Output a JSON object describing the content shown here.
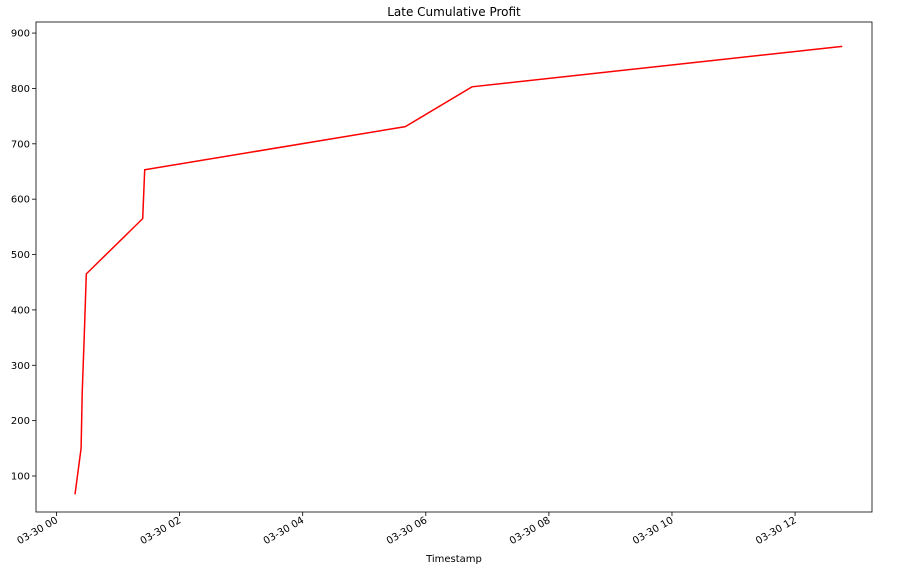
{
  "chart_data": {
    "type": "line",
    "title": "Late Cumulative Profit",
    "xlabel": "Timestamp",
    "ylabel": "",
    "x_unit": "datetime",
    "xlim": [
      "03-30 23:40 prev",
      "03-30 13:15"
    ],
    "ylim": [
      35,
      920
    ],
    "xticks": [
      "03-30 00",
      "03-30 02",
      "03-30 04",
      "03-30 06",
      "03-30 08",
      "03-30 10",
      "03-30 12"
    ],
    "yticks": [
      100,
      200,
      300,
      400,
      500,
      600,
      700,
      800,
      900
    ],
    "grid": false,
    "legend": "none",
    "series": [
      {
        "color": "#ff0000",
        "points": [
          {
            "x": "03-30 00:18",
            "y": 67
          },
          {
            "x": "03-30 00:24",
            "y": 150
          },
          {
            "x": "03-30 00:25",
            "y": 250
          },
          {
            "x": "03-30 00:27",
            "y": 350
          },
          {
            "x": "03-30 00:29",
            "y": 465
          },
          {
            "x": "03-30 01:24",
            "y": 565
          },
          {
            "x": "03-30 01:26",
            "y": 653
          },
          {
            "x": "03-30 05:40",
            "y": 731
          },
          {
            "x": "03-30 06:45",
            "y": 803
          },
          {
            "x": "03-30 12:46",
            "y": 876
          }
        ]
      }
    ]
  }
}
